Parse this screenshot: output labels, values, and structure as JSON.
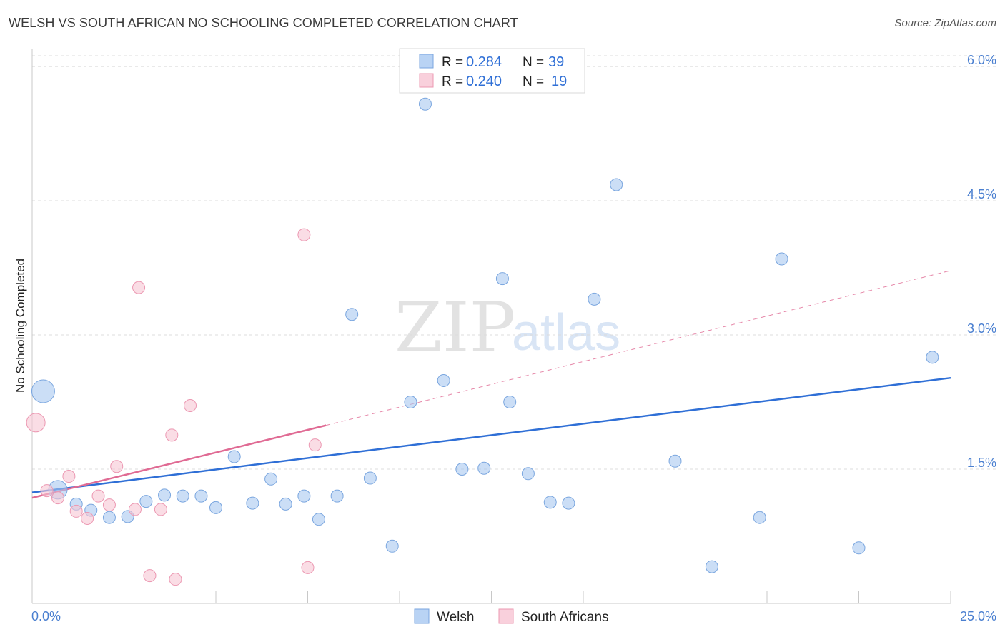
{
  "title": "WELSH VS SOUTH AFRICAN NO SCHOOLING COMPLETED CORRELATION CHART",
  "source": "Source: ZipAtlas.com",
  "chart_data": {
    "type": "scatter",
    "title": "WELSH VS SOUTH AFRICAN NO SCHOOLING COMPLETED CORRELATION CHART",
    "xlabel": "",
    "ylabel": "No Schooling Completed",
    "xlim": [
      0,
      25
    ],
    "ylim": [
      0,
      6.2
    ],
    "x_tick_labels": [
      "0.0%",
      "25.0%"
    ],
    "y_ticks": [
      1.5,
      3.0,
      4.5,
      6.0
    ],
    "y_tick_labels": [
      "1.5%",
      "3.0%",
      "4.5%",
      "6.0%"
    ],
    "watermark": [
      "ZIP",
      "atlas"
    ],
    "legend": [
      {
        "r_label": "R =",
        "r_value": "0.284",
        "n_label": "N =",
        "n_value": "39"
      },
      {
        "r_label": "R =",
        "r_value": "0.240",
        "n_label": "N =",
        "n_value": "19"
      }
    ],
    "series": [
      {
        "name": "Welsh",
        "color": "#a9c8f0",
        "stroke": "#7aa6df",
        "line_color": "#2f6fd6",
        "trend": {
          "x": [
            0,
            25
          ],
          "y": [
            1.24,
            2.52
          ]
        },
        "points": [
          {
            "x": 0.3,
            "y": 2.37,
            "size": "xl"
          },
          {
            "x": 0.7,
            "y": 1.27,
            "size": "l"
          },
          {
            "x": 1.2,
            "y": 1.11
          },
          {
            "x": 1.6,
            "y": 1.04
          },
          {
            "x": 2.1,
            "y": 0.96
          },
          {
            "x": 2.6,
            "y": 0.97
          },
          {
            "x": 3.1,
            "y": 1.14
          },
          {
            "x": 3.6,
            "y": 1.21
          },
          {
            "x": 4.1,
            "y": 1.2
          },
          {
            "x": 4.6,
            "y": 1.2
          },
          {
            "x": 5.0,
            "y": 1.07
          },
          {
            "x": 5.5,
            "y": 1.64
          },
          {
            "x": 6.0,
            "y": 1.12
          },
          {
            "x": 6.5,
            "y": 1.39
          },
          {
            "x": 6.9,
            "y": 1.11
          },
          {
            "x": 7.4,
            "y": 1.2
          },
          {
            "x": 7.8,
            "y": 0.94
          },
          {
            "x": 8.3,
            "y": 1.2
          },
          {
            "x": 8.7,
            "y": 3.23
          },
          {
            "x": 9.2,
            "y": 1.4
          },
          {
            "x": 9.8,
            "y": 0.64
          },
          {
            "x": 10.3,
            "y": 2.25
          },
          {
            "x": 10.7,
            "y": 5.58
          },
          {
            "x": 11.2,
            "y": 2.49
          },
          {
            "x": 11.7,
            "y": 1.5
          },
          {
            "x": 12.3,
            "y": 1.51
          },
          {
            "x": 12.8,
            "y": 3.63
          },
          {
            "x": 13.0,
            "y": 2.25
          },
          {
            "x": 13.5,
            "y": 1.45
          },
          {
            "x": 14.1,
            "y": 1.13
          },
          {
            "x": 14.6,
            "y": 1.12
          },
          {
            "x": 15.3,
            "y": 3.4
          },
          {
            "x": 15.9,
            "y": 4.68
          },
          {
            "x": 17.5,
            "y": 1.59
          },
          {
            "x": 18.5,
            "y": 0.41
          },
          {
            "x": 19.8,
            "y": 0.96
          },
          {
            "x": 20.4,
            "y": 3.85
          },
          {
            "x": 22.5,
            "y": 0.62
          },
          {
            "x": 24.5,
            "y": 2.75
          }
        ]
      },
      {
        "name": "South Africans",
        "color": "#f7c6d4",
        "stroke": "#ec98b2",
        "line_color": "#e06b94",
        "trend": {
          "x": [
            0,
            8.0
          ],
          "y": [
            1.18,
            1.99
          ]
        },
        "trend_extension": {
          "x": [
            8.0,
            25
          ],
          "y": [
            1.99,
            3.72
          ]
        },
        "points": [
          {
            "x": 0.1,
            "y": 2.02,
            "size": "l"
          },
          {
            "x": 0.4,
            "y": 1.26
          },
          {
            "x": 0.7,
            "y": 1.18
          },
          {
            "x": 1.0,
            "y": 1.42
          },
          {
            "x": 1.2,
            "y": 1.03
          },
          {
            "x": 1.5,
            "y": 0.95
          },
          {
            "x": 1.8,
            "y": 1.2
          },
          {
            "x": 2.1,
            "y": 1.1
          },
          {
            "x": 2.3,
            "y": 1.53
          },
          {
            "x": 2.8,
            "y": 1.05
          },
          {
            "x": 2.9,
            "y": 3.53
          },
          {
            "x": 3.2,
            "y": 0.31
          },
          {
            "x": 3.5,
            "y": 1.05
          },
          {
            "x": 3.8,
            "y": 1.88
          },
          {
            "x": 3.9,
            "y": 0.27
          },
          {
            "x": 4.3,
            "y": 2.21
          },
          {
            "x": 7.4,
            "y": 4.12
          },
          {
            "x": 7.5,
            "y": 0.4
          },
          {
            "x": 7.7,
            "y": 1.77
          }
        ]
      }
    ]
  }
}
